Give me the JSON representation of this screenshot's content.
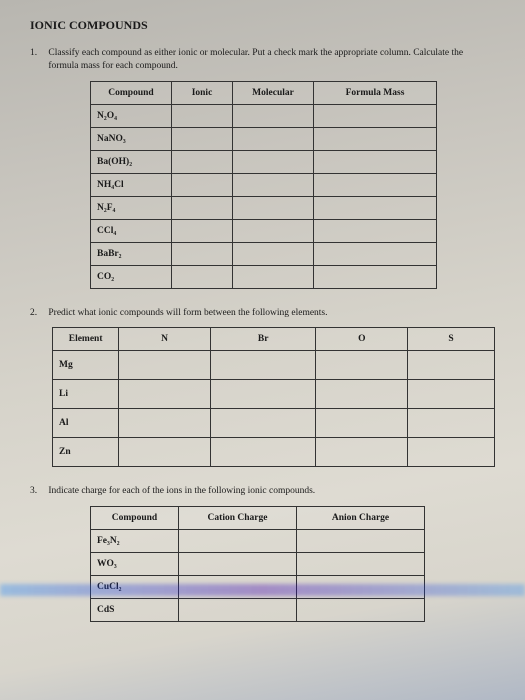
{
  "title": "IONIC COMPOUNDS",
  "q1": {
    "num": "1.",
    "text": "Classify each compound as either ionic or molecular. Put a check mark the appropriate column. Calculate the formula mass for each compound.",
    "headers": [
      "Compound",
      "Ionic",
      "Molecular",
      "Formula Mass"
    ],
    "rows": [
      "N₂O₄",
      "NaNO₃",
      "Ba(OH)₂",
      "NH₄Cl",
      "N₂F₄",
      "CCl₄",
      "BaBr₂",
      "CO₂"
    ]
  },
  "q2": {
    "num": "2.",
    "text": "Predict what ionic compounds will form between the following elements.",
    "headers": [
      "Element",
      "N",
      "Br",
      "O",
      "S"
    ],
    "rows": [
      "Mg",
      "Li",
      "Al",
      "Zn"
    ]
  },
  "q3": {
    "num": "3.",
    "text": "Indicate charge for each of the ions in the following ionic compounds.",
    "headers": [
      "Compound",
      "Cation Charge",
      "Anion Charge"
    ],
    "rows": [
      "Fe₃N₂",
      "WO₃",
      "CuCl₂",
      "CdS"
    ]
  }
}
